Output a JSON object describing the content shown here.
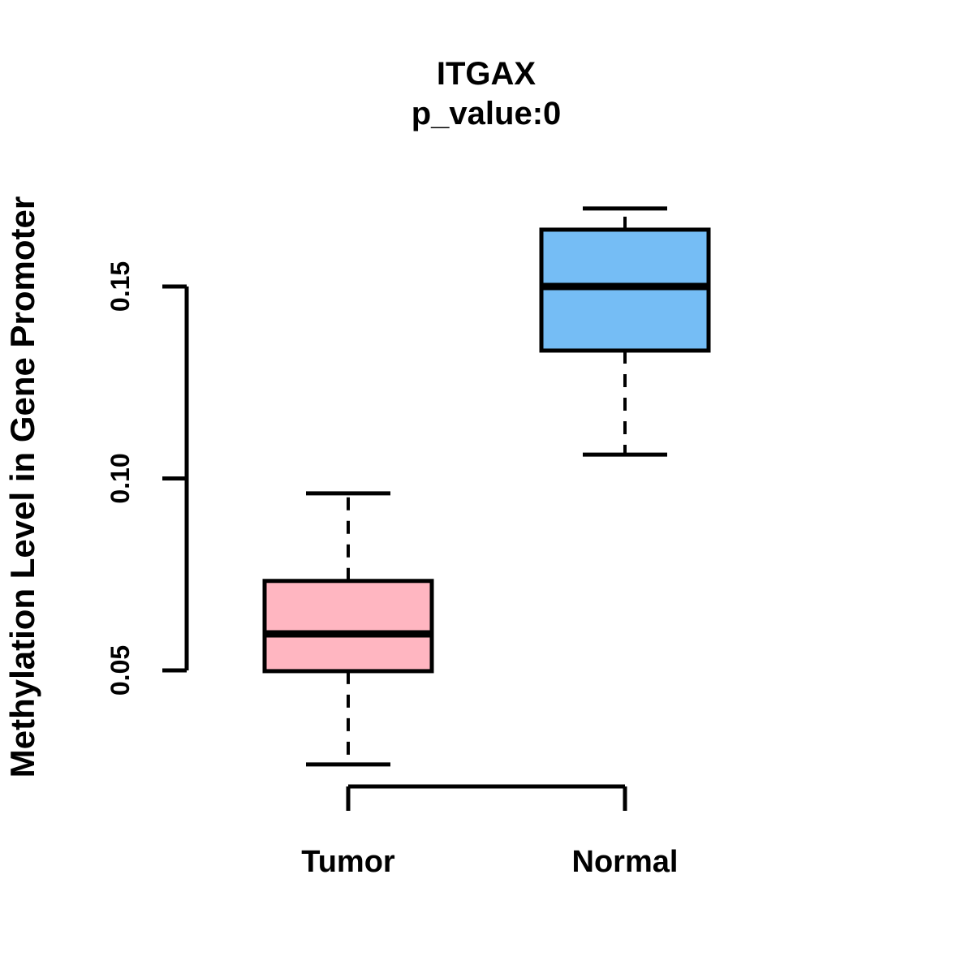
{
  "figure": {
    "background_color": "#FFFFFF",
    "foreground_color": "#000000"
  },
  "chart_data": {
    "type": "boxplot",
    "title": "ITGAX",
    "subtitle": "p_value:0",
    "xlabel": "",
    "ylabel": "Methylation Level in Gene Promoter",
    "categories": [
      "Tumor",
      "Normal"
    ],
    "y_ticks": [
      0.05,
      0.1,
      0.15
    ],
    "y_tick_labels": [
      "0.05",
      "0.10",
      "0.15"
    ],
    "ylim": [
      0.0197,
      0.1761
    ],
    "grid": false,
    "legend": "none",
    "stroke_color": "#000000",
    "series": [
      {
        "name": "Tumor",
        "fill": "#FFB6C1",
        "whisker_low": 0.0255,
        "q1": 0.0498,
        "median": 0.0595,
        "q3": 0.0733,
        "whisker_high": 0.0961
      },
      {
        "name": "Normal",
        "fill": "#75BDF5",
        "whisker_low": 0.1062,
        "q1": 0.1333,
        "median": 0.15,
        "q3": 0.1648,
        "whisker_high": 0.1703
      }
    ]
  }
}
